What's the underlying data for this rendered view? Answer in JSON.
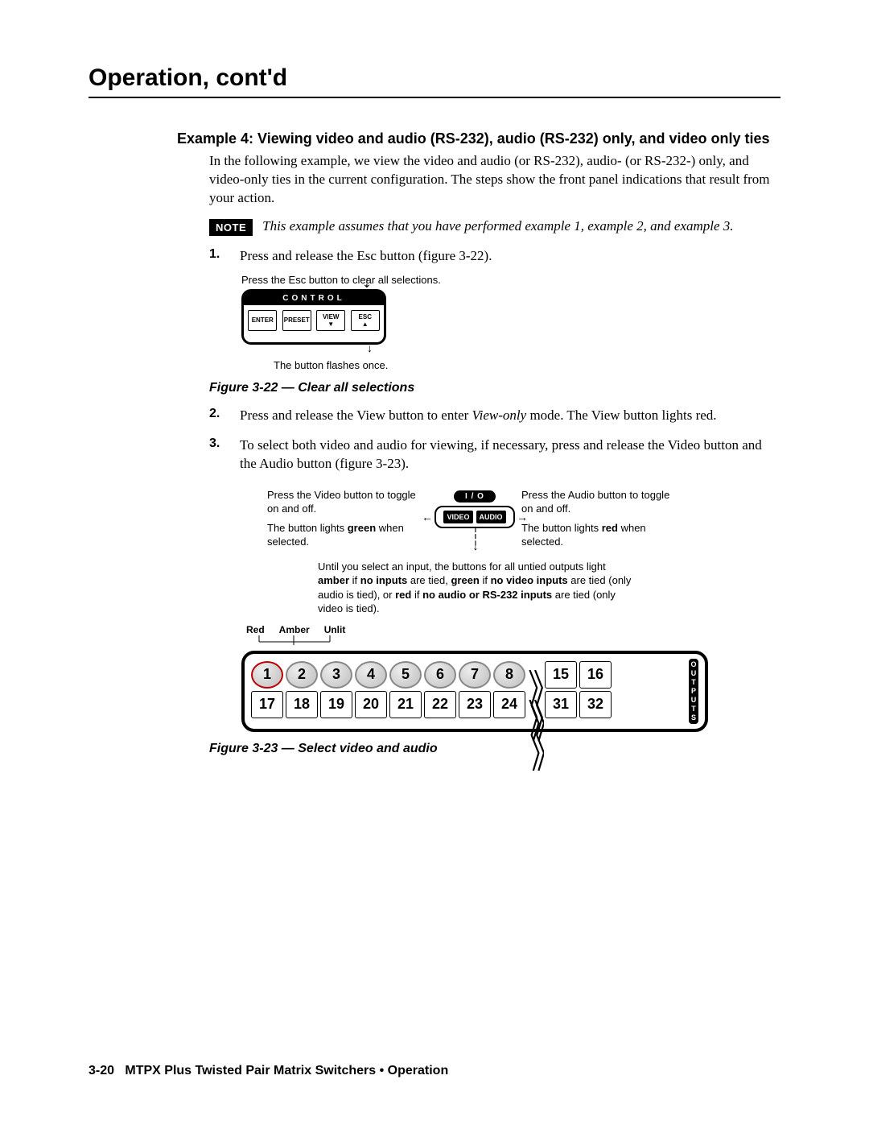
{
  "header": {
    "title": "Operation, cont'd"
  },
  "example": {
    "title": "Example 4: Viewing video and audio (RS-232), audio (RS-232) only, and video only ties",
    "intro": "In the following example, we view the video and audio (or RS-232), audio- (or RS-232-) only, and video-only ties in the current configuration.  The steps show the front panel indications that result from your action.",
    "note_label": "NOTE",
    "note_text": "This example assumes that you have performed example 1, example 2, and example 3.",
    "step1_num": "1.",
    "step1_text": "Press and release the Esc button (figure 3-22).",
    "step2_num": "2.",
    "step2_text_a": "Press and release the View button to enter ",
    "step2_text_i": "View-only",
    "step2_text_b": " mode.  The View button lights red.",
    "step3_num": "3.",
    "step3_text": "To select both video and audio for viewing, if necessary, press and release the Video button and the Audio button (figure 3-23)."
  },
  "fig322": {
    "top_label": "Press the Esc button to clear all selections.",
    "control_label": "CONTROL",
    "btns": {
      "enter": "ENTER",
      "preset": "PRESET",
      "view": "VIEW",
      "esc": "ESC"
    },
    "bottom_label": "The button flashes once.",
    "caption": "Figure 3-22 — Clear all selections"
  },
  "fig323": {
    "left1": "Press the Video button to toggle on and off.",
    "left2a": "The button lights ",
    "left2b": "green",
    "left2c": " when selected.",
    "right1": "Press the Audio button to toggle on and off.",
    "right2a": "The button lights ",
    "right2b": "red",
    "right2c": " when selected.",
    "io_label": "I / O",
    "video": "VIDEO",
    "audio": "AUDIO",
    "until_a": "Until you select an input, the buttons for all untied outputs light ",
    "until_amber": "amber",
    "until_b": " if ",
    "until_noin": "no inputs",
    "until_c": " are tied, ",
    "until_green": "green",
    "until_d": " if ",
    "until_novid": "no video inputs",
    "until_e": " are tied (only audio is tied), or ",
    "until_red": "red",
    "until_f": " if ",
    "until_noaud": "no audio or RS-232 inputs",
    "until_g": " are tied (only video is tied).",
    "legend": {
      "red": "Red",
      "amber": "Amber",
      "unlit": "Unlit"
    },
    "outputs_label": "OUTPUTS",
    "row1_circles": [
      "1",
      "2",
      "3",
      "4",
      "5",
      "6",
      "7",
      "8"
    ],
    "row1_right": [
      "15",
      "16"
    ],
    "row2_left": [
      "17",
      "18",
      "19",
      "20",
      "21",
      "22",
      "23",
      "24"
    ],
    "row2_right": [
      "31",
      "32"
    ],
    "red_index": 0,
    "caption": "Figure 3-23 — Select video and audio"
  },
  "footer": {
    "page": "3-20",
    "title": "MTPX Plus Twisted Pair Matrix Switchers • Operation"
  }
}
